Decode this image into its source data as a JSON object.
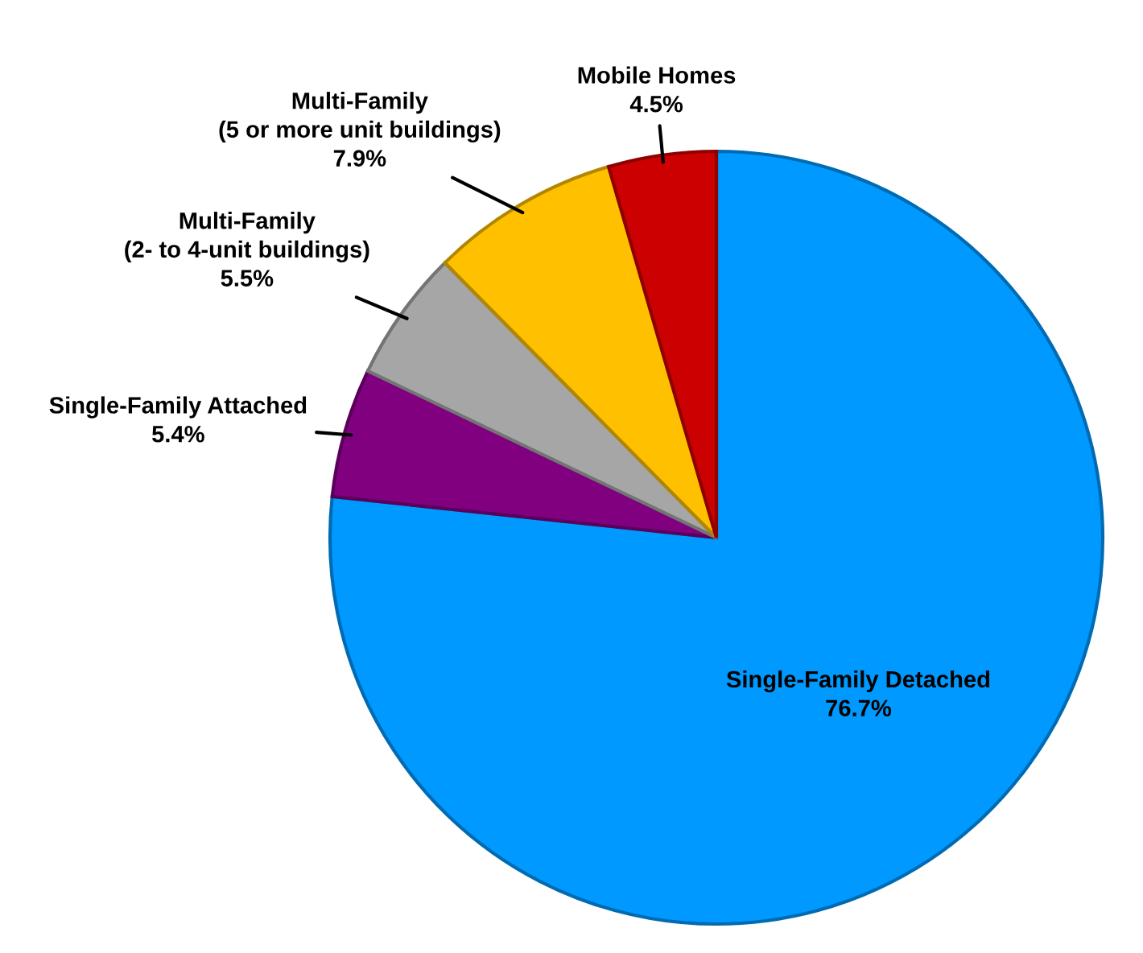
{
  "chart_data": {
    "type": "pie",
    "categories": [
      "Single-Family Detached",
      "Single-Family Attached",
      "Multi-Family\n(2- to 4-unit buildings)",
      "Multi-Family\n(5 or more unit buildings)",
      "Mobile Homes"
    ],
    "values": [
      76.7,
      5.4,
      5.5,
      7.9,
      4.5
    ],
    "colors": [
      "#0099ff",
      "#800080",
      "#a6a6a6",
      "#ffc000",
      "#cc0000"
    ],
    "value_labels": [
      "76.7%",
      "5.4%",
      "5.5%",
      "7.9%",
      "4.5%"
    ]
  }
}
